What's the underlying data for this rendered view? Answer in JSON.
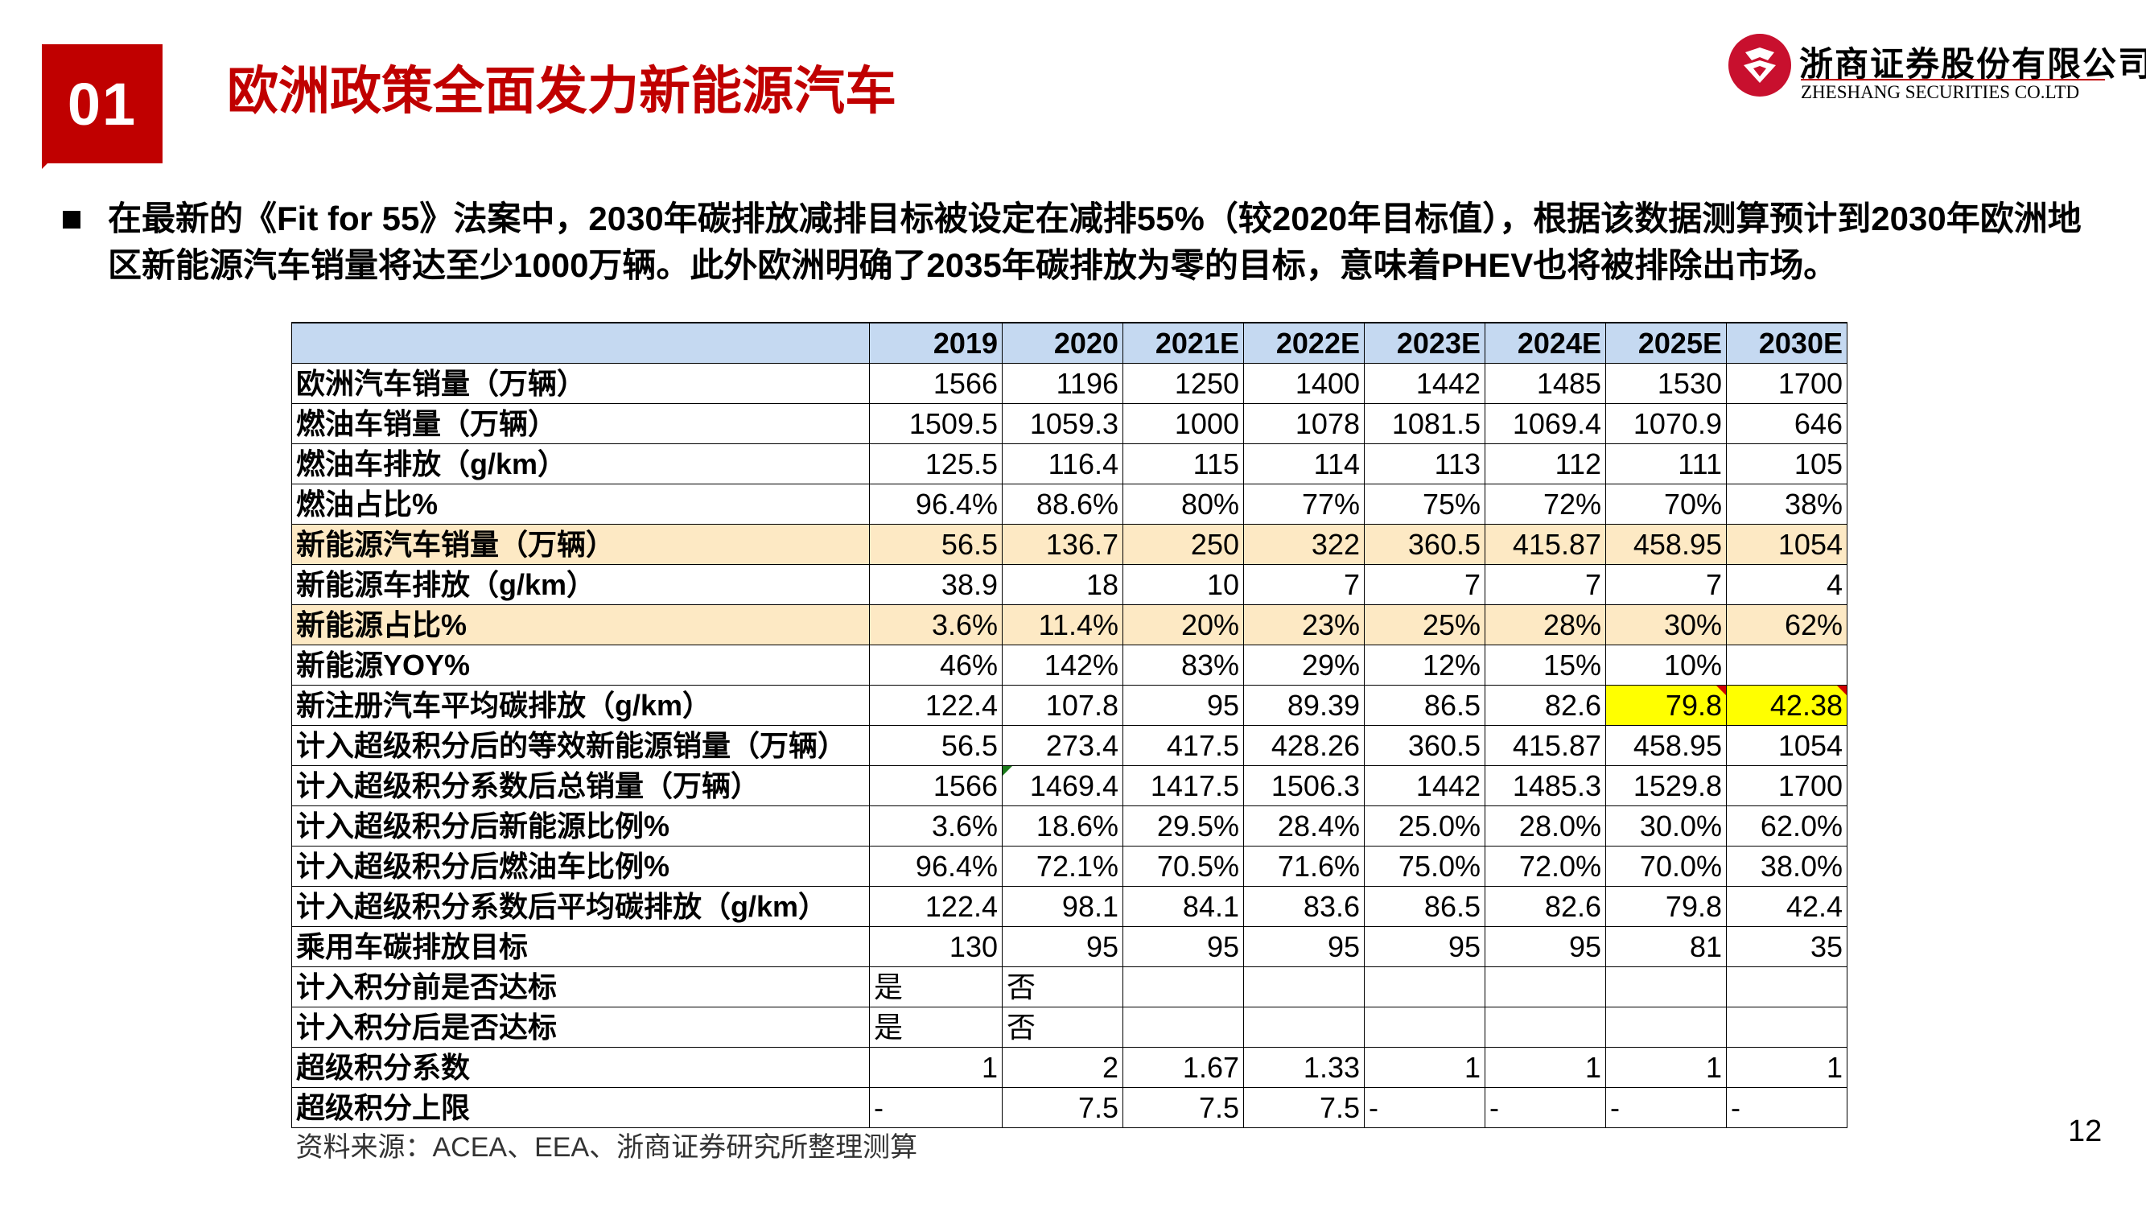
{
  "section_badge": "01",
  "title": "欧洲政策全面发力新能源汽车",
  "logo": {
    "name_cn": "浙商证券股份有限公司",
    "name_en": "ZHESHANG SECURITIES CO.LTD"
  },
  "bullet_text": "在最新的《Fit for 55》法案中，2030年碳排放减排目标被设定在减排55%（较2020年目标值），根据该数据测算预计到2030年欧洲地区新能源汽车销量将达至少1000万辆。此外欧洲明确了2035年碳排放为零的目标，意味着PHEV也将被排除出市场。",
  "table": {
    "columns": [
      "2019",
      "2020",
      "2021E",
      "2022E",
      "2023E",
      "2024E",
      "2025E",
      "2030E"
    ],
    "rows": [
      {
        "label": "欧洲汽车销量（万辆）",
        "values": [
          "1566",
          "1196",
          "1250",
          "1400",
          "1442",
          "1485",
          "1530",
          "1700"
        ]
      },
      {
        "label": "燃油车销量（万辆）",
        "values": [
          "1509.5",
          "1059.3",
          "1000",
          "1078",
          "1081.5",
          "1069.4",
          "1070.9",
          "646"
        ]
      },
      {
        "label": "燃油车排放（g/km）",
        "values": [
          "125.5",
          "116.4",
          "115",
          "114",
          "113",
          "112",
          "111",
          "105"
        ]
      },
      {
        "label": "燃油占比%",
        "values": [
          "96.4%",
          "88.6%",
          "80%",
          "77%",
          "75%",
          "72%",
          "70%",
          "38%"
        ]
      },
      {
        "label": "新能源汽车销量（万辆）",
        "values": [
          "56.5",
          "136.7",
          "250",
          "322",
          "360.5",
          "415.87",
          "458.95",
          "1054"
        ]
      },
      {
        "label": "新能源车排放（g/km）",
        "values": [
          "38.9",
          "18",
          "10",
          "7",
          "7",
          "7",
          "7",
          "4"
        ]
      },
      {
        "label": "新能源占比%",
        "values": [
          "3.6%",
          "11.4%",
          "20%",
          "23%",
          "25%",
          "28%",
          "30%",
          "62%"
        ]
      },
      {
        "label": "新能源YOY%",
        "values": [
          "46%",
          "142%",
          "83%",
          "29%",
          "12%",
          "15%",
          "10%",
          ""
        ]
      },
      {
        "label": "新注册汽车平均碳排放（g/km）",
        "values": [
          "122.4",
          "107.8",
          "95",
          "89.39",
          "86.5",
          "82.6",
          "79.8",
          "42.38"
        ]
      },
      {
        "label": "计入超级积分后的等效新能源销量（万辆）",
        "values": [
          "56.5",
          "273.4",
          "417.5",
          "428.26",
          "360.5",
          "415.87",
          "458.95",
          "1054"
        ]
      },
      {
        "label": "计入超级积分系数后总销量（万辆）",
        "values": [
          "1566",
          "1469.4",
          "1417.5",
          "1506.3",
          "1442",
          "1485.3",
          "1529.8",
          "1700"
        ]
      },
      {
        "label": "计入超级积分后新能源比例%",
        "values": [
          "3.6%",
          "18.6%",
          "29.5%",
          "28.4%",
          "25.0%",
          "28.0%",
          "30.0%",
          "62.0%"
        ]
      },
      {
        "label": "计入超级积分后燃油车比例%",
        "values": [
          "96.4%",
          "72.1%",
          "70.5%",
          "71.6%",
          "75.0%",
          "72.0%",
          "70.0%",
          "38.0%"
        ]
      },
      {
        "label": "计入超级积分系数后平均碳排放（g/km）",
        "values": [
          "122.4",
          "98.1",
          "84.1",
          "83.6",
          "86.5",
          "82.6",
          "79.8",
          "42.4"
        ]
      },
      {
        "label": "乘用车碳排放目标",
        "values": [
          "130",
          "95",
          "95",
          "95",
          "95",
          "95",
          "81",
          "35"
        ]
      },
      {
        "label": "计入积分前是否达标",
        "values": [
          "是",
          "否",
          "",
          "",
          "",
          "",
          "",
          ""
        ]
      },
      {
        "label": "计入积分后是否达标",
        "values": [
          "是",
          "否",
          "",
          "",
          "",
          "",
          "",
          ""
        ]
      },
      {
        "label": "超级积分系数",
        "values": [
          "1",
          "2",
          "1.67",
          "1.33",
          "1",
          "1",
          "1",
          "1"
        ]
      },
      {
        "label": "超级积分上限",
        "values": [
          "-",
          "7.5",
          "7.5",
          "7.5",
          "-",
          "-",
          "-",
          "-"
        ]
      }
    ],
    "source": "资料来源：ACEA、EEA、浙商证券研究所整理测算"
  },
  "page_number": "12",
  "colors": {
    "accent_red": "#c00000",
    "header_blue": "#c5d9f1",
    "highlight_peach": "#fde9c4",
    "highlight_yellow": "#ffff00"
  }
}
